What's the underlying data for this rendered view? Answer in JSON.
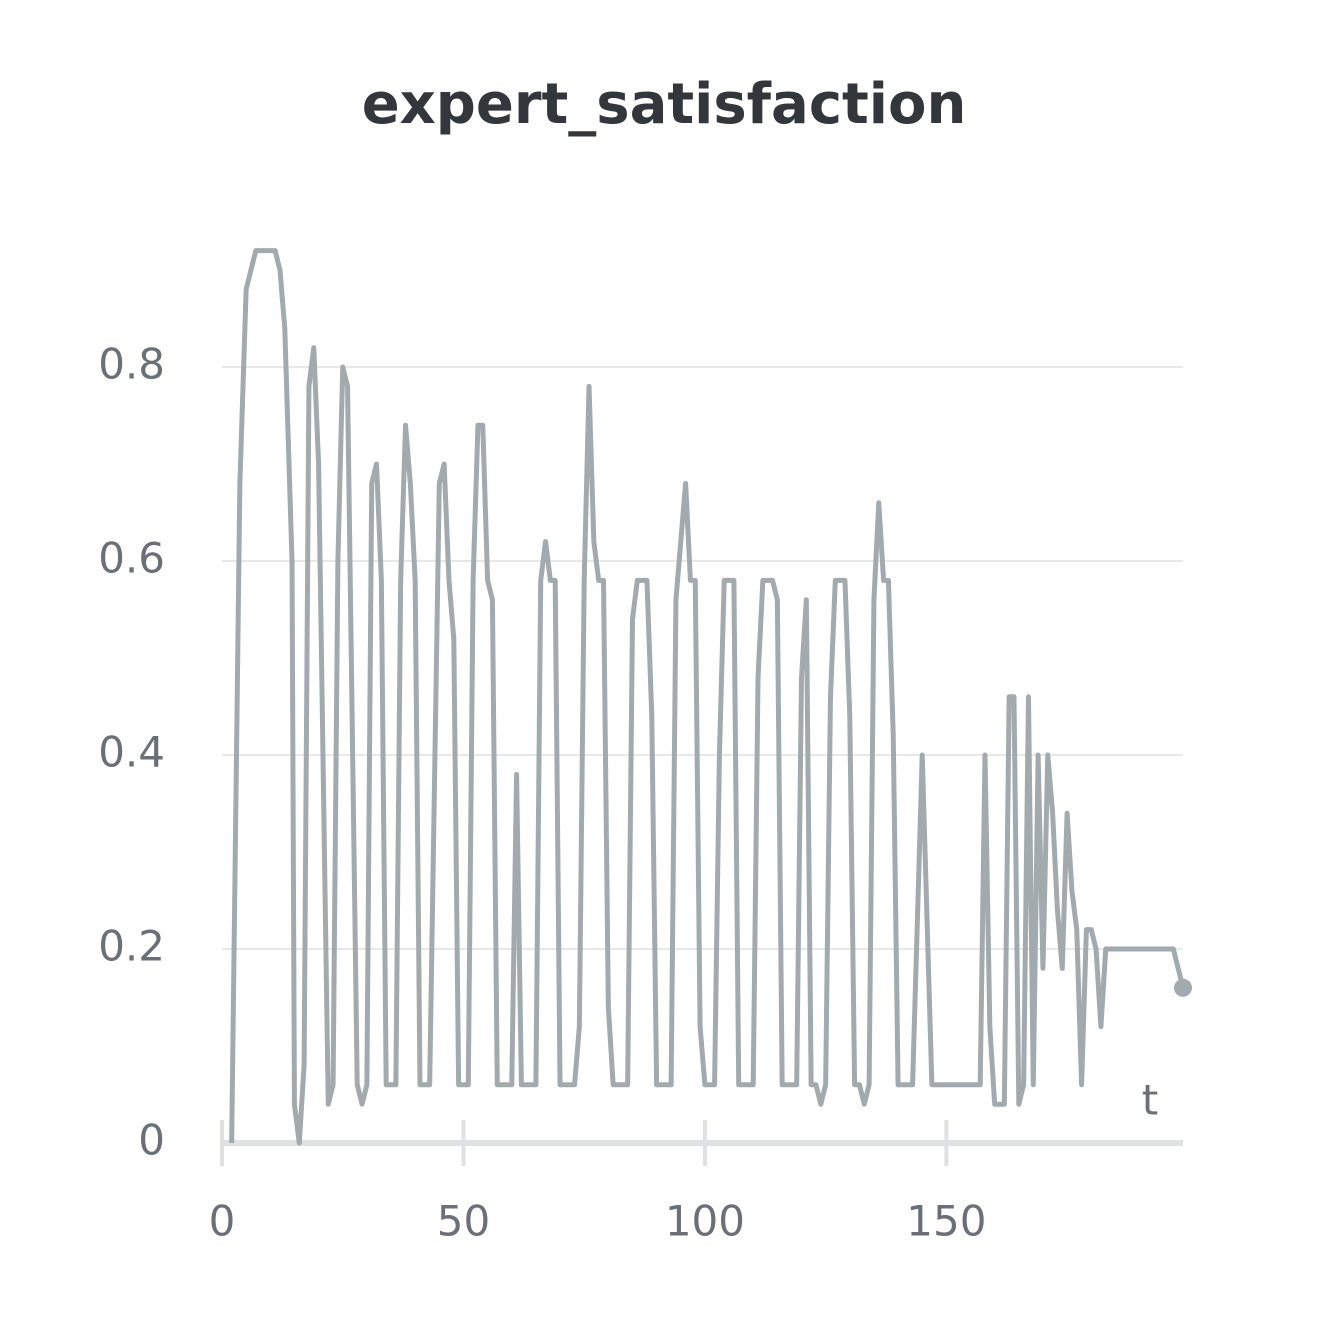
{
  "chart_data": {
    "type": "line",
    "title": "expert_satisfaction",
    "x_label": "t",
    "xlim": [
      0,
      199
    ],
    "ylim": [
      0,
      0.94
    ],
    "xticks": [
      0,
      50,
      100,
      150
    ],
    "yticks": [
      0,
      0.2,
      0.4,
      0.6,
      0.8
    ],
    "grid": true,
    "series": [
      {
        "name": "expert_satisfaction",
        "color": "#a3aaad",
        "x": [
          2,
          3.7,
          5,
          7,
          11,
          12,
          13,
          14.5,
          15,
          16,
          17,
          18,
          19,
          20,
          22,
          23,
          24,
          25,
          26,
          28,
          29,
          30,
          31,
          32,
          33,
          34,
          36,
          37,
          38,
          39,
          40,
          41,
          43,
          45,
          46,
          47,
          48,
          49,
          51,
          52,
          53,
          54,
          55,
          56,
          57,
          60,
          61,
          62,
          65,
          66,
          67,
          68,
          69,
          70,
          73,
          74,
          75,
          76,
          77,
          78,
          79,
          80,
          81,
          84,
          85,
          86,
          88,
          89,
          90,
          93,
          94,
          96,
          97,
          98,
          99,
          100,
          102,
          103,
          104,
          106,
          107,
          110,
          111,
          112,
          114,
          115,
          116,
          119,
          120,
          121,
          122,
          123,
          124,
          125,
          126,
          127,
          129,
          130,
          131,
          132,
          133,
          134,
          135,
          136,
          137,
          138,
          139,
          140,
          143,
          145,
          147,
          157,
          158,
          159,
          160,
          162,
          163,
          164,
          165,
          166,
          167,
          168,
          169,
          170,
          171,
          172,
          173,
          174,
          175,
          176,
          177,
          178,
          179,
          180,
          181,
          182,
          183,
          197,
          199
        ],
        "values": [
          0,
          0.68,
          0.88,
          0.92,
          0.92,
          0.9,
          0.84,
          0.6,
          0.04,
          0,
          0.08,
          0.78,
          0.82,
          0.7,
          0.04,
          0.06,
          0.6,
          0.8,
          0.78,
          0.06,
          0.04,
          0.06,
          0.68,
          0.7,
          0.58,
          0.06,
          0.06,
          0.58,
          0.74,
          0.68,
          0.58,
          0.06,
          0.06,
          0.68,
          0.7,
          0.58,
          0.52,
          0.06,
          0.06,
          0.58,
          0.74,
          0.74,
          0.58,
          0.56,
          0.06,
          0.06,
          0.38,
          0.06,
          0.06,
          0.58,
          0.62,
          0.58,
          0.58,
          0.06,
          0.06,
          0.12,
          0.58,
          0.78,
          0.62,
          0.58,
          0.58,
          0.14,
          0.06,
          0.06,
          0.54,
          0.58,
          0.58,
          0.44,
          0.06,
          0.06,
          0.56,
          0.68,
          0.58,
          0.58,
          0.12,
          0.06,
          0.06,
          0.4,
          0.58,
          0.58,
          0.06,
          0.06,
          0.48,
          0.58,
          0.58,
          0.56,
          0.06,
          0.06,
          0.48,
          0.56,
          0.06,
          0.06,
          0.04,
          0.06,
          0.46,
          0.58,
          0.58,
          0.44,
          0.06,
          0.06,
          0.04,
          0.06,
          0.56,
          0.66,
          0.58,
          0.58,
          0.42,
          0.06,
          0.06,
          0.4,
          0.06,
          0.06,
          0.4,
          0.12,
          0.04,
          0.04,
          0.46,
          0.46,
          0.04,
          0.06,
          0.46,
          0.06,
          0.4,
          0.18,
          0.4,
          0.34,
          0.24,
          0.18,
          0.34,
          0.26,
          0.22,
          0.06,
          0.22,
          0.22,
          0.2,
          0.12,
          0.2,
          0.2,
          0.16
        ]
      }
    ]
  }
}
